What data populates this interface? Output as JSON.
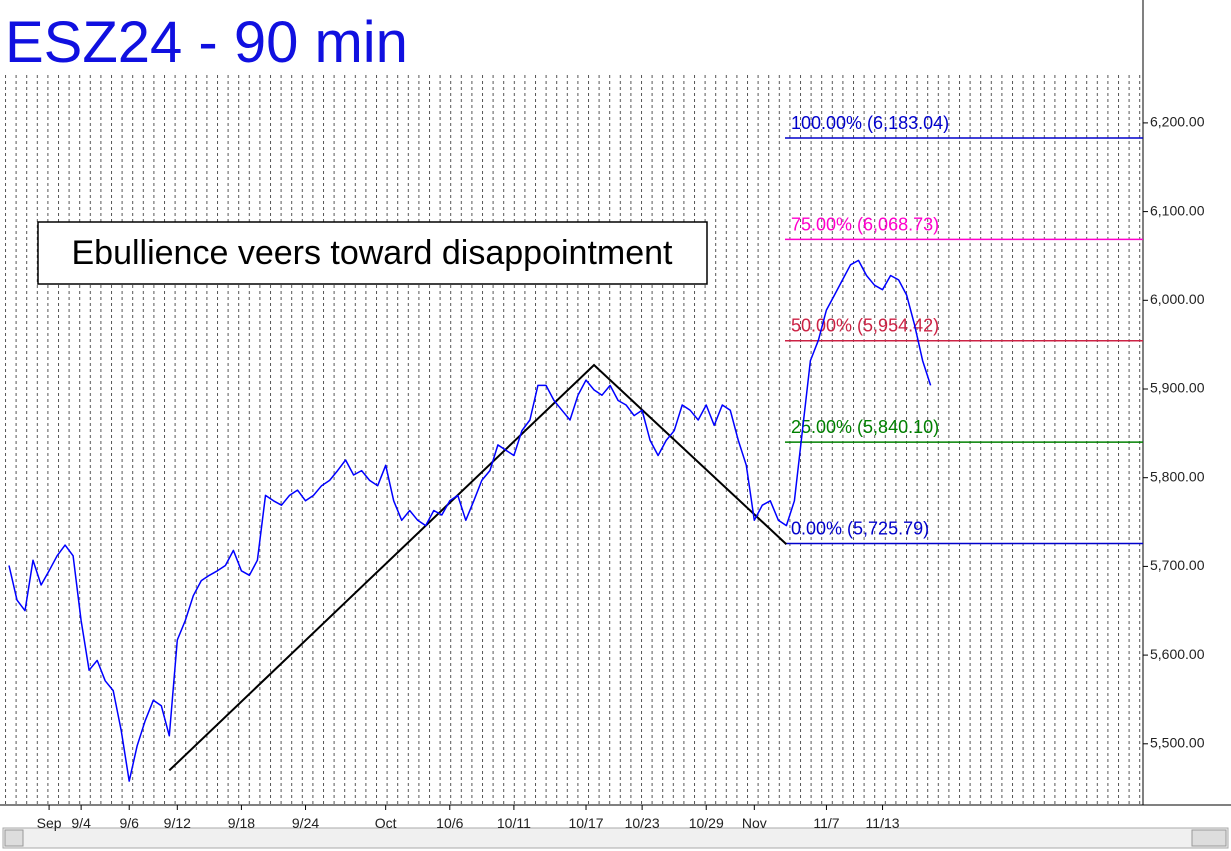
{
  "chart_data": {
    "type": "line",
    "title": "ESZ24 - 90 min",
    "annotation": "Ebullience veers toward disappointment",
    "categories": [
      null,
      null,
      null,
      null,
      null,
      "Sep",
      null,
      null,
      null,
      "9/4",
      null,
      null,
      null,
      null,
      null,
      "9/6",
      null,
      null,
      null,
      null,
      null,
      "9/12",
      null,
      null,
      null,
      null,
      null,
      null,
      null,
      "9/18",
      null,
      null,
      null,
      null,
      null,
      null,
      null,
      "9/24",
      null,
      null,
      null,
      null,
      null,
      null,
      null,
      null,
      null,
      "Oct",
      null,
      null,
      null,
      null,
      null,
      null,
      null,
      "10/6",
      null,
      null,
      null,
      null,
      null,
      null,
      null,
      "10/11",
      null,
      null,
      null,
      null,
      null,
      null,
      null,
      null,
      "10/17",
      null,
      null,
      null,
      null,
      null,
      null,
      "10/23",
      null,
      null,
      null,
      null,
      null,
      null,
      null,
      "10/29",
      null,
      null,
      null,
      null,
      null,
      "Nov",
      null,
      null,
      null,
      null,
      null,
      null,
      null,
      null,
      "11/7",
      null,
      null,
      null,
      null,
      null,
      null,
      "11/13",
      null,
      null,
      null,
      null,
      null,
      null,
      null,
      null,
      null,
      null,
      null,
      null,
      null,
      null,
      null,
      null,
      null,
      null,
      null,
      null,
      null,
      null,
      null,
      null,
      null,
      null,
      null,
      null,
      null,
      null,
      null,
      null
    ],
    "series": [
      {
        "color": "#0000ff",
        "values": [
          5701,
          5662,
          5650,
          5707,
          5679,
          5695,
          5712,
          5724,
          5712,
          5639,
          5583,
          5594,
          5571,
          5560,
          5515,
          5458,
          5498,
          5526,
          5549,
          5543,
          5509,
          5617,
          5639,
          5667,
          5684,
          5690,
          5695,
          5701,
          5718,
          5695,
          5690,
          5707,
          5780,
          5774,
          5769,
          5780,
          5786,
          5774,
          5780,
          5791,
          5797,
          5808,
          5820,
          5803,
          5808,
          5797,
          5791,
          5814,
          5774,
          5752,
          5763,
          5752,
          5746,
          5763,
          5758,
          5774,
          5780,
          5752,
          5774,
          5797,
          5808,
          5837,
          5831,
          5825,
          5853,
          5865,
          5904,
          5904,
          5887,
          5876,
          5865,
          5893,
          5910,
          5899,
          5893,
          5904,
          5887,
          5882,
          5870,
          5876,
          5842,
          5825,
          5842,
          5853,
          5882,
          5876,
          5865,
          5882,
          5859,
          5882,
          5876,
          5842,
          5814,
          5752,
          5769,
          5774,
          5752,
          5746,
          5774,
          5853,
          5932,
          5955,
          5989,
          6006,
          6023,
          6040,
          6045,
          6028,
          6017,
          6012,
          6028,
          6023,
          6006,
          5972,
          5932,
          5904,
          null,
          null,
          null,
          null,
          null,
          null,
          null,
          null,
          null,
          null,
          null,
          null,
          null,
          null,
          null,
          null,
          null,
          null,
          null,
          null,
          null,
          null,
          null,
          null,
          null,
          null
        ]
      }
    ],
    "trend_line": {
      "color": "#000000",
      "at": [
        20,
        73,
        97
      ],
      "values": [
        5470,
        5927,
        5725
      ]
    },
    "levels": [
      {
        "label": "100.00% (6,183.04)",
        "value": 6183.04,
        "color": "#0000cc"
      },
      {
        "label": "75.00% (6,068.73)",
        "value": 6068.73,
        "color": "#ff00cc"
      },
      {
        "label": "50.00% (5,954.42)",
        "value": 5954.42,
        "color": "#cc2244"
      },
      {
        "label": "25.00% (5,840.10)",
        "value": 5840.1,
        "color": "#008000"
      },
      {
        "label": "0.00% (5,725.79)",
        "value": 5725.79,
        "color": "#0000cc"
      }
    ],
    "ylim": [
      5431,
      6254
    ],
    "yticks": [
      {
        "value": 5500,
        "label": "5,500.00"
      },
      {
        "value": 5600,
        "label": "5,600.00"
      },
      {
        "value": 5700,
        "label": "5,700.00"
      },
      {
        "value": 5800,
        "label": "5,800.00"
      },
      {
        "value": 5900,
        "label": "5,900.00"
      },
      {
        "value": 6000,
        "label": "6,000.00"
      },
      {
        "value": 6100,
        "label": "6,100.00"
      },
      {
        "value": 6200,
        "label": "6,200.00"
      }
    ]
  }
}
